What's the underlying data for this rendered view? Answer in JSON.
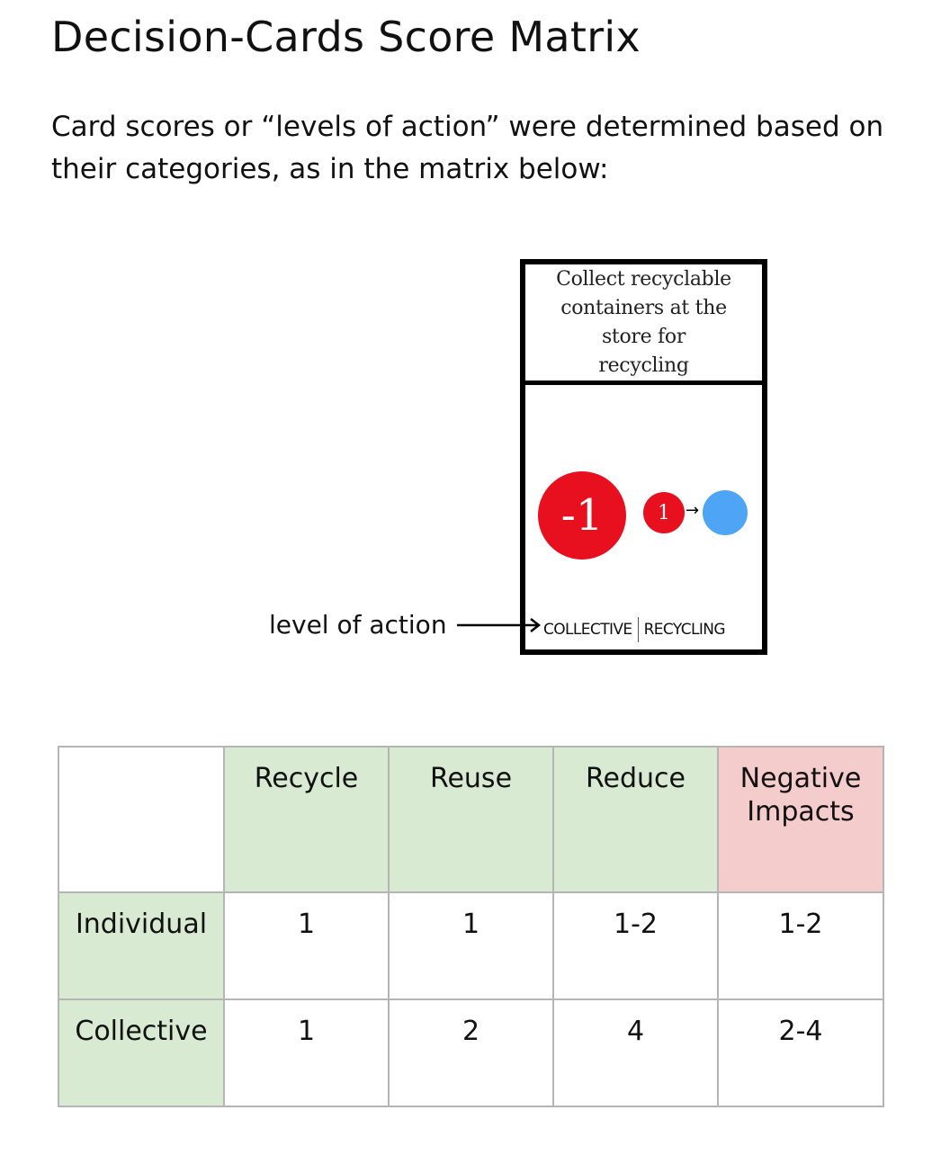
{
  "title": "Decision-Cards Score Matrix",
  "intro": "Card scores or “levels of action” were determined based on their categories, as in the matrix below:",
  "card": {
    "text": "Collect recyclable containers at the store for recycling",
    "big_circle_value": "-1",
    "small_circle_value": "1",
    "arrow_glyph": "→",
    "footer_left": "COLLECTIVE",
    "footer_right": "RECYCLING",
    "colors": {
      "red": "#e8101f",
      "blue": "#4ea5f5"
    }
  },
  "annotation": {
    "label": "level of action"
  },
  "matrix": {
    "columns": [
      "Recycle",
      "Reuse",
      "Reduce",
      "Negative Impacts"
    ],
    "rows": [
      {
        "label": "Individual",
        "values": [
          "1",
          "1",
          "1-2",
          "1-2"
        ]
      },
      {
        "label": "Collective",
        "values": [
          "1",
          "2",
          "4",
          "2-4"
        ]
      }
    ],
    "colors": {
      "category_green": "#d9ead3",
      "negative_red": "#f4cccc"
    }
  }
}
